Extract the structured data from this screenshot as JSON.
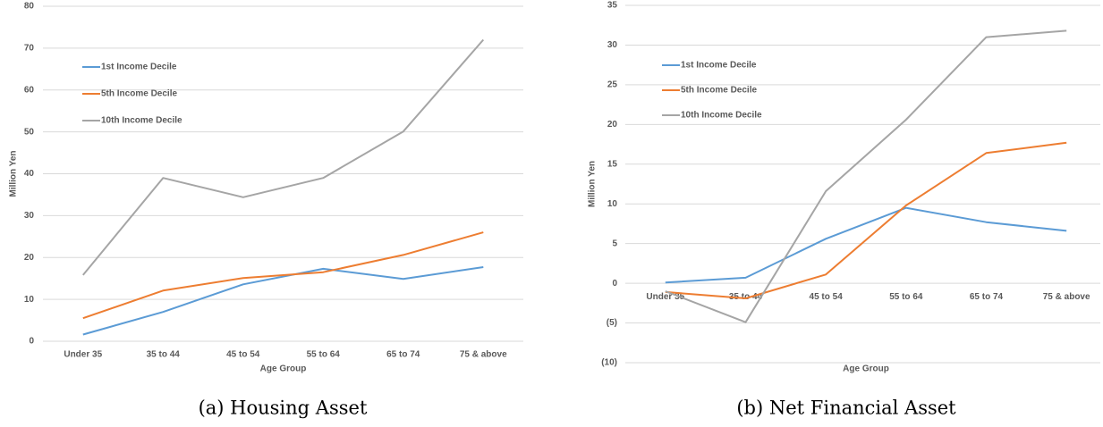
{
  "chart_data": [
    {
      "type": "line",
      "caption": "(a) Housing Asset",
      "x_label": "Age Group",
      "y_label": "Million Yen",
      "categories": [
        "Under 35",
        "35 to 44",
        "45 to 54",
        "55 to 64",
        "65 to 74",
        "75 & above"
      ],
      "series": [
        {
          "name": "1st Income Decile",
          "color": "#5b9bd5",
          "values": [
            1.6,
            7,
            13.6,
            17.3,
            14.9,
            17.7
          ]
        },
        {
          "name": "5th Income Decile",
          "color": "#ed7d31",
          "values": [
            5.5,
            12.1,
            15.1,
            16.5,
            20.6,
            26
          ]
        },
        {
          "name": "10th Income Decile",
          "color": "#a5a5a5",
          "values": [
            15.8,
            39,
            34.4,
            39,
            50.1,
            72
          ]
        }
      ],
      "ylim": [
        0,
        80
      ],
      "yticks": [
        0,
        10,
        20,
        30,
        40,
        50,
        60,
        70,
        80
      ],
      "grid": true,
      "legend": "upper left"
    },
    {
      "type": "line",
      "caption": "(b) Net Financial Asset",
      "x_label": "Age Group",
      "y_label": "Million Yen",
      "categories": [
        "Under 35",
        "35 to 44",
        "45 to 54",
        "55 to 64",
        "65 to 74",
        "75 & above"
      ],
      "series": [
        {
          "name": "1st Income Decile",
          "color": "#5b9bd5",
          "values": [
            0.1,
            0.7,
            5.6,
            9.5,
            7.7,
            6.6
          ]
        },
        {
          "name": "5th Income Decile",
          "color": "#ed7d31",
          "values": [
            -1.1,
            -1.9,
            1.1,
            9.8,
            16.4,
            17.7
          ]
        },
        {
          "name": "10th Income Decile",
          "color": "#a5a5a5",
          "values": [
            -1,
            -4.9,
            11.6,
            20.6,
            31,
            31.8
          ]
        }
      ],
      "ylim": [
        -10,
        35
      ],
      "yticks": [
        {
          "value": -10,
          "label": "(10)"
        },
        {
          "value": -5,
          "label": "(5)"
        },
        0,
        5,
        10,
        15,
        20,
        25,
        30,
        35
      ],
      "grid": true,
      "legend": "upper left"
    }
  ]
}
